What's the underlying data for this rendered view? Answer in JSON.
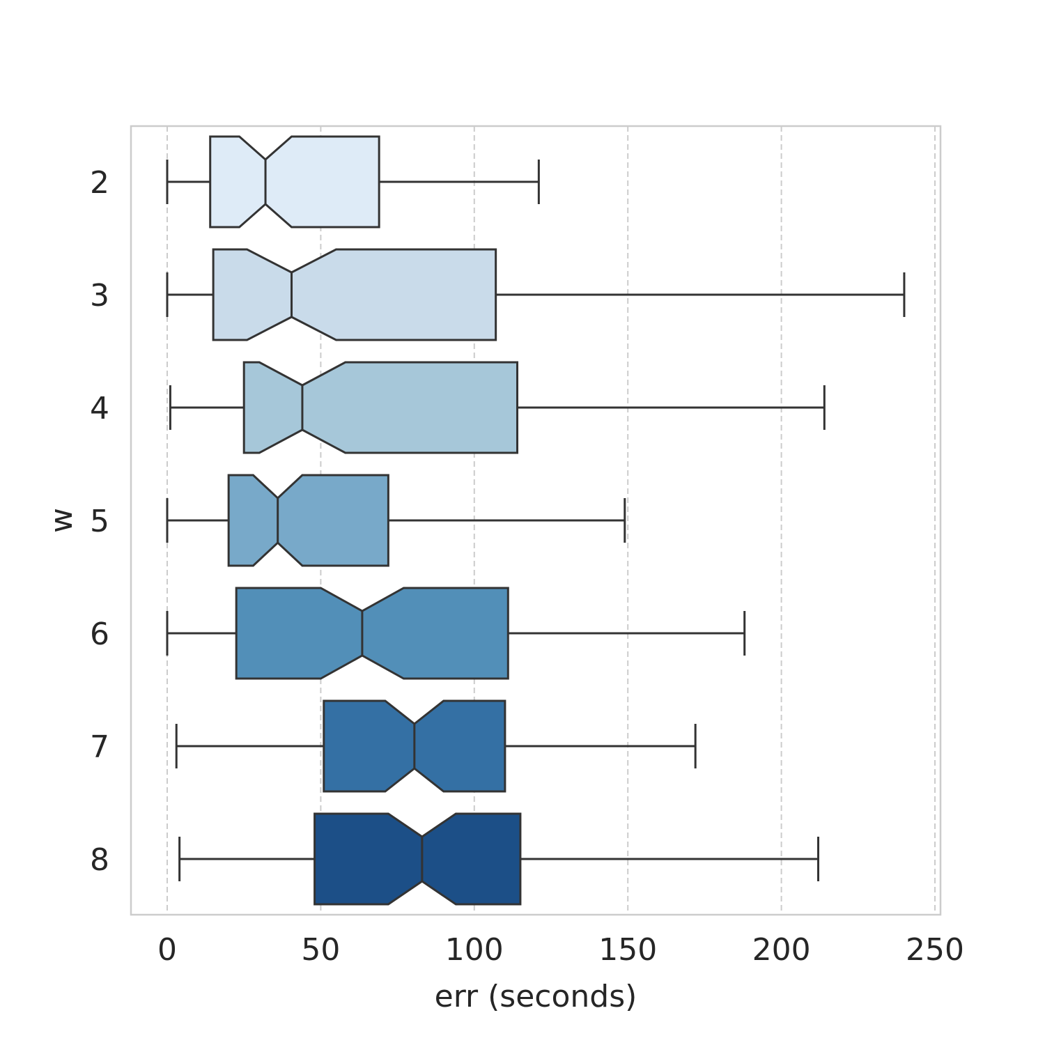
{
  "chart_data": {
    "type": "boxplot",
    "orientation": "horizontal",
    "notched": true,
    "xlabel": "err (seconds)",
    "ylabel": "w",
    "xlim": [
      -12,
      252
    ],
    "xticks": [
      0,
      50,
      100,
      150,
      200,
      250
    ],
    "grid": "x-dashed",
    "categories": [
      "2",
      "3",
      "4",
      "5",
      "6",
      "7",
      "8"
    ],
    "series": [
      {
        "category": "2",
        "whisker_low": 0,
        "q1": 14,
        "notch_low": 23.5,
        "median": 32,
        "notch_high": 40.5,
        "q3": 69,
        "whisker_high": 121,
        "color": "#deebf7"
      },
      {
        "category": "3",
        "whisker_low": 0,
        "q1": 15,
        "notch_low": 26,
        "median": 40.5,
        "notch_high": 55,
        "q3": 107,
        "whisker_high": 240,
        "color": "#c9dbea"
      },
      {
        "category": "4",
        "whisker_low": 1,
        "q1": 25,
        "notch_low": 30,
        "median": 44,
        "notch_high": 58,
        "q3": 114,
        "whisker_high": 214,
        "color": "#a6c7d9"
      },
      {
        "category": "5",
        "whisker_low": 0,
        "q1": 20,
        "notch_low": 28,
        "median": 36,
        "notch_high": 44,
        "q3": 72,
        "whisker_high": 149,
        "color": "#78a9c9"
      },
      {
        "category": "6",
        "whisker_low": 0,
        "q1": 22.5,
        "notch_low": 50,
        "median": 63.5,
        "notch_high": 77,
        "q3": 111,
        "whisker_high": 188,
        "color": "#528fb8"
      },
      {
        "category": "7",
        "whisker_low": 3,
        "q1": 51,
        "notch_low": 71,
        "median": 80.5,
        "notch_high": 90,
        "q3": 110,
        "whisker_high": 172,
        "color": "#3470a4"
      },
      {
        "category": "8",
        "whisker_low": 4,
        "q1": 48,
        "notch_low": 72,
        "median": 83,
        "notch_high": 94,
        "q3": 115,
        "whisker_high": 212,
        "color": "#1c4f87"
      }
    ]
  }
}
